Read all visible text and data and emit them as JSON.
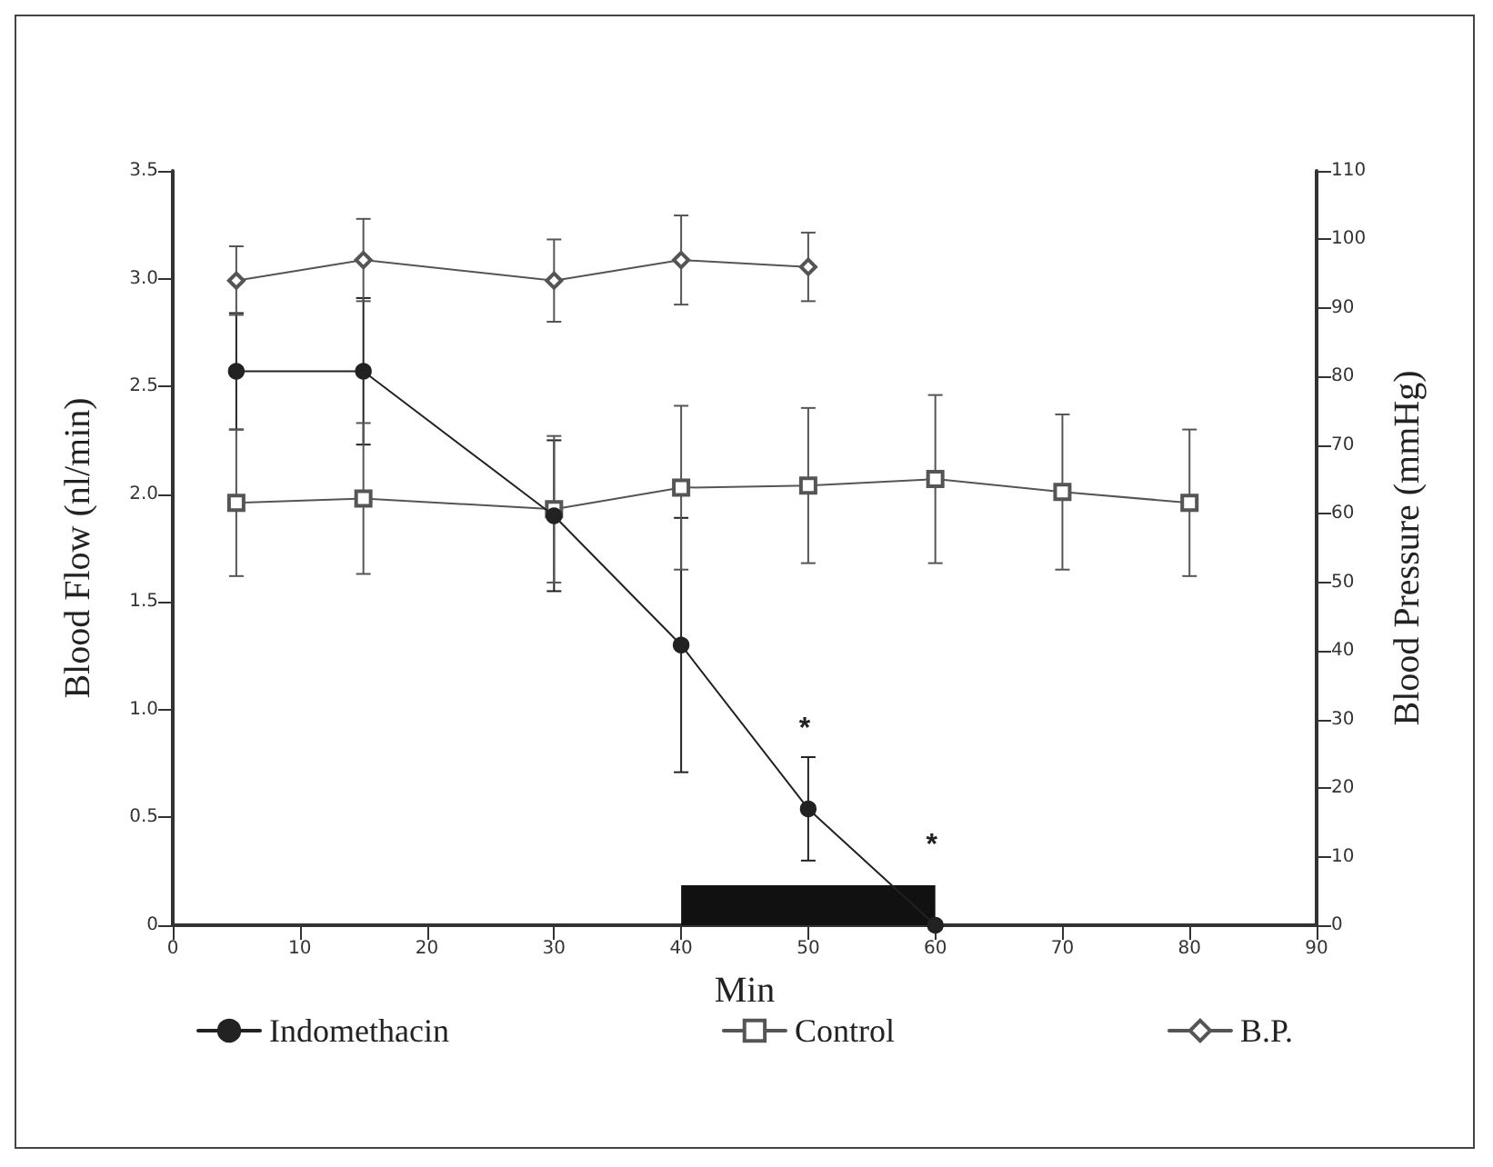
{
  "chart_data": {
    "type": "line",
    "xlabel": "Min",
    "ylabel": "Blood Flow (nl/min)",
    "y2label": "Blood Pressure (mmHg)",
    "xlim": [
      0,
      90
    ],
    "xticks": [
      0,
      10,
      20,
      30,
      40,
      50,
      60,
      70,
      80,
      90
    ],
    "ylim": [
      0,
      3.5
    ],
    "yticks": [
      0,
      0.5,
      {
        "value": 1,
        "label": "1.0"
      },
      1.5,
      {
        "value": 2,
        "label": "2.0"
      },
      2.5,
      {
        "value": 3,
        "label": "3.0"
      },
      3.5
    ],
    "y2lim": [
      0,
      110
    ],
    "y2ticks": [
      0,
      10,
      20,
      30,
      40,
      50,
      60,
      70,
      80,
      90,
      100,
      110
    ],
    "grid": false,
    "legend": "bottom",
    "series": [
      {
        "name": "Indomethacin",
        "color": "#222222",
        "marker": "circle",
        "x": [
          5,
          15,
          30,
          40,
          50,
          60
        ],
        "values": [
          2.57,
          2.57,
          1.9,
          1.3,
          0.54,
          0
        ],
        "errors": [
          0.27,
          0.34,
          0.35,
          0.59,
          0.24,
          null
        ]
      },
      {
        "name": "Control",
        "color": "#555555",
        "marker": "square",
        "x": [
          5,
          15,
          30,
          40,
          50,
          60,
          70,
          80
        ],
        "values": [
          1.96,
          1.98,
          1.93,
          2.03,
          2.04,
          2.07,
          2.01,
          1.96
        ],
        "errors": [
          0.34,
          0.35,
          0.34,
          0.38,
          0.36,
          0.39,
          0.36,
          0.34
        ]
      },
      {
        "name": "B.P.",
        "color": "#555555",
        "marker": "diamond",
        "axis": "y2",
        "x": [
          5,
          15,
          30,
          40,
          50
        ],
        "values": [
          94,
          97,
          94,
          97,
          96
        ],
        "errors": [
          5,
          6,
          6,
          6.5,
          5
        ]
      }
    ],
    "bands": [
      {
        "axis": "x",
        "from": 40,
        "to": 60,
        "color": "#111111"
      }
    ],
    "annotations": [
      {
        "text": "*",
        "x": 50,
        "y": 0.54
      },
      {
        "text": "*",
        "x": 60,
        "y": 0
      }
    ]
  }
}
